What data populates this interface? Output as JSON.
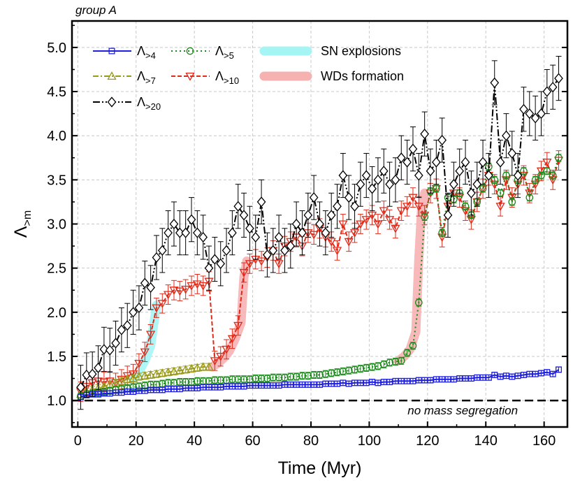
{
  "chart_data": {
    "type": "line",
    "panel_label": "group A",
    "xlabel": "Time (Myr)",
    "ylabel": "Λ",
    "ylabel_sub": ">m",
    "xlim": [
      -2,
      168
    ],
    "ylim": [
      0.7,
      5.3
    ],
    "xticks": [
      0,
      20,
      40,
      60,
      80,
      100,
      120,
      140,
      160
    ],
    "yticks": [
      1.0,
      1.5,
      2.0,
      2.5,
      3.0,
      3.5,
      4.0,
      4.5,
      5.0
    ],
    "ytick_labels": [
      "1.0",
      "1.5",
      "2.0",
      "2.5",
      "3.0",
      "3.5",
      "4.0",
      "4.5",
      "5.0"
    ],
    "grid": true,
    "legend_position": "top-left",
    "reference_line": {
      "y": 1.0,
      "label": "no mass segregation",
      "color": "#000000"
    },
    "highlight_bands": [
      {
        "name": "SN explosions",
        "color": "#a6f5f5",
        "x": [
          19,
          21,
          23,
          25,
          26,
          27
        ],
        "y": [
          1.24,
          1.33,
          1.45,
          1.62,
          1.85,
          2.08
        ]
      },
      {
        "name": "WDs formation",
        "color": "#f6b1b1",
        "segments": [
          {
            "x": [
              46,
              48,
              50,
              52,
              54,
              56,
              57,
              58
            ],
            "y": [
              1.38,
              1.42,
              1.48,
              1.56,
              1.7,
              1.88,
              2.4,
              2.58
            ]
          },
          {
            "x": [
              110,
              112,
              114,
              116,
              117,
              118,
              119
            ],
            "y": [
              1.45,
              1.5,
              1.58,
              1.78,
              2.6,
              3.2,
              3.35
            ]
          }
        ]
      }
    ],
    "series": [
      {
        "name": "Λ",
        "name_sub": ">4",
        "color": "#1f1fe0",
        "dash": "none",
        "marker": "square",
        "x": [
          1,
          3,
          5,
          7,
          9,
          11,
          13,
          15,
          17,
          19,
          21,
          23,
          25,
          27,
          29,
          31,
          33,
          35,
          37,
          39,
          41,
          43,
          45,
          47,
          49,
          51,
          53,
          55,
          57,
          59,
          61,
          63,
          65,
          67,
          69,
          71,
          73,
          75,
          77,
          79,
          81,
          83,
          85,
          87,
          89,
          91,
          93,
          95,
          97,
          99,
          101,
          103,
          105,
          107,
          109,
          111,
          113,
          115,
          117,
          119,
          121,
          123,
          125,
          127,
          129,
          131,
          133,
          135,
          137,
          139,
          141,
          143,
          145,
          147,
          149,
          151,
          153,
          155,
          157,
          159,
          161,
          163,
          165
        ],
        "y": [
          1.04,
          1.06,
          1.07,
          1.07,
          1.08,
          1.08,
          1.09,
          1.09,
          1.1,
          1.1,
          1.11,
          1.11,
          1.12,
          1.12,
          1.12,
          1.13,
          1.13,
          1.13,
          1.14,
          1.14,
          1.14,
          1.15,
          1.15,
          1.15,
          1.15,
          1.16,
          1.16,
          1.16,
          1.16,
          1.17,
          1.17,
          1.17,
          1.17,
          1.17,
          1.17,
          1.18,
          1.18,
          1.18,
          1.18,
          1.18,
          1.18,
          1.18,
          1.19,
          1.19,
          1.19,
          1.2,
          1.19,
          1.2,
          1.2,
          1.2,
          1.21,
          1.2,
          1.21,
          1.21,
          1.22,
          1.22,
          1.22,
          1.22,
          1.23,
          1.23,
          1.23,
          1.24,
          1.24,
          1.24,
          1.24,
          1.25,
          1.25,
          1.25,
          1.26,
          1.26,
          1.26,
          1.29,
          1.27,
          1.28,
          1.27,
          1.28,
          1.29,
          1.3,
          1.3,
          1.31,
          1.32,
          1.3,
          1.35
        ],
        "err": 0.03
      },
      {
        "name": "Λ",
        "name_sub": ">5",
        "color": "#1a8a1a",
        "dash": "2 4",
        "marker": "circle",
        "x": [
          1,
          3,
          5,
          7,
          9,
          11,
          13,
          15,
          17,
          19,
          21,
          23,
          25,
          27,
          29,
          31,
          33,
          35,
          37,
          39,
          41,
          43,
          45,
          47,
          49,
          51,
          53,
          55,
          57,
          59,
          61,
          63,
          65,
          67,
          69,
          71,
          73,
          75,
          77,
          79,
          81,
          83,
          85,
          87,
          89,
          91,
          93,
          95,
          97,
          99,
          101,
          103,
          105,
          107,
          109,
          111,
          113,
          115,
          117,
          119,
          121,
          123,
          125,
          127,
          129,
          131,
          133,
          135,
          137,
          139,
          141,
          143,
          145,
          147,
          149,
          151,
          153,
          155,
          157,
          159,
          161,
          163,
          165
        ],
        "y": [
          1.05,
          1.07,
          1.08,
          1.09,
          1.1,
          1.11,
          1.12,
          1.13,
          1.14,
          1.15,
          1.16,
          1.17,
          1.18,
          1.18,
          1.19,
          1.2,
          1.2,
          1.21,
          1.21,
          1.21,
          1.22,
          1.22,
          1.22,
          1.23,
          1.23,
          1.23,
          1.24,
          1.24,
          1.24,
          1.24,
          1.25,
          1.25,
          1.25,
          1.26,
          1.26,
          1.26,
          1.27,
          1.27,
          1.28,
          1.28,
          1.29,
          1.29,
          1.3,
          1.31,
          1.32,
          1.33,
          1.34,
          1.35,
          1.36,
          1.37,
          1.38,
          1.39,
          1.41,
          1.43,
          1.44,
          1.45,
          1.54,
          1.62,
          2.11,
          3.08,
          3.37,
          3.4,
          2.9,
          3.3,
          3.28,
          3.35,
          3.2,
          3.1,
          3.25,
          3.4,
          3.65,
          3.5,
          3.35,
          3.55,
          3.25,
          3.5,
          3.6,
          3.3,
          3.5,
          3.55,
          3.6,
          3.55,
          3.75
        ],
        "err": 0.04
      },
      {
        "name": "Λ",
        "name_sub": ">7",
        "color": "#9a9a1a",
        "dash": "8 3 2 3",
        "marker": "triangle-up",
        "x": [
          1,
          3,
          5,
          7,
          9,
          11,
          13,
          15,
          17,
          19,
          21,
          23,
          25,
          27,
          29,
          31,
          33,
          35,
          37,
          39,
          41,
          43,
          45
        ],
        "y": [
          1.07,
          1.1,
          1.12,
          1.14,
          1.16,
          1.18,
          1.2,
          1.22,
          1.24,
          1.25,
          1.27,
          1.28,
          1.29,
          1.3,
          1.31,
          1.32,
          1.33,
          1.34,
          1.35,
          1.36,
          1.37,
          1.38,
          1.38
        ],
        "err": 0.04
      },
      {
        "name": "Λ",
        "name_sub": ">10",
        "color": "#e02a1a",
        "dash": "6 3",
        "marker": "triangle-down",
        "x": [
          1,
          3,
          5,
          7,
          9,
          11,
          13,
          15,
          17,
          19,
          21,
          23,
          25,
          27,
          29,
          31,
          33,
          35,
          37,
          39,
          41,
          43,
          45,
          47,
          49,
          51,
          53,
          55,
          57,
          59,
          61,
          63,
          65,
          67,
          69,
          71,
          73,
          75,
          77,
          79,
          81,
          83,
          85,
          87,
          89,
          91,
          93,
          95,
          97,
          99,
          101,
          103,
          105,
          107,
          109,
          111,
          113,
          115,
          117,
          119,
          121,
          123,
          125,
          127,
          129,
          131,
          133,
          135,
          137,
          139,
          141,
          143,
          145,
          147,
          149,
          151,
          153,
          155,
          157,
          159,
          161,
          163,
          165
        ],
        "y": [
          1.1,
          1.16,
          1.2,
          1.22,
          1.21,
          1.22,
          1.2,
          1.24,
          1.28,
          1.3,
          1.42,
          1.55,
          1.75,
          2.05,
          2.1,
          2.2,
          2.25,
          2.24,
          2.26,
          2.3,
          2.32,
          2.3,
          2.35,
          1.45,
          1.5,
          1.58,
          1.7,
          1.85,
          2.45,
          2.55,
          2.6,
          2.58,
          2.62,
          2.7,
          2.55,
          2.75,
          2.8,
          2.85,
          2.75,
          2.9,
          2.88,
          2.95,
          2.85,
          2.8,
          2.7,
          3.0,
          2.8,
          2.9,
          3.0,
          3.05,
          3.1,
          3.0,
          3.15,
          3.05,
          2.95,
          3.15,
          3.2,
          3.3,
          3.2,
          3.1,
          3.35,
          3.4,
          2.85,
          3.2,
          3.35,
          3.3,
          3.15,
          3.05,
          3.25,
          3.4,
          3.55,
          3.45,
          3.2,
          3.5,
          3.3,
          3.45,
          3.55,
          3.35,
          3.45,
          3.6,
          3.7,
          3.5,
          3.72
        ],
        "err": 0.11
      },
      {
        "name": "Λ",
        "name_sub": ">20",
        "color": "#000000",
        "dash": "10 3 2 3 2 3",
        "marker": "diamond",
        "x": [
          1,
          3,
          5,
          7,
          9,
          11,
          13,
          15,
          17,
          19,
          21,
          23,
          25,
          27,
          29,
          31,
          33,
          35,
          37,
          39,
          41,
          43,
          45,
          47,
          49,
          51,
          53,
          55,
          57,
          59,
          61,
          63,
          65,
          67,
          69,
          71,
          73,
          75,
          77,
          79,
          81,
          83,
          85,
          87,
          89,
          91,
          93,
          95,
          97,
          99,
          101,
          103,
          105,
          107,
          109,
          111,
          113,
          115,
          117,
          119,
          121,
          123,
          125,
          127,
          129,
          131,
          133,
          135,
          137,
          139,
          141,
          143,
          145,
          147,
          149,
          151,
          153,
          155,
          157,
          159,
          161,
          163,
          165
        ],
        "y": [
          1.15,
          1.29,
          1.3,
          1.37,
          1.58,
          1.57,
          1.65,
          1.8,
          1.85,
          2.0,
          2.05,
          2.33,
          2.28,
          2.62,
          2.7,
          2.9,
          3.0,
          2.9,
          2.9,
          3.05,
          2.9,
          2.85,
          2.5,
          2.6,
          2.55,
          2.7,
          2.9,
          3.2,
          3.1,
          2.95,
          2.85,
          3.25,
          2.65,
          2.7,
          2.85,
          2.7,
          2.75,
          3.0,
          2.9,
          3.1,
          3.3,
          3.0,
          2.9,
          3.1,
          3.2,
          3.55,
          3.3,
          3.2,
          3.45,
          3.55,
          3.4,
          3.5,
          3.6,
          3.45,
          3.5,
          3.75,
          3.7,
          3.85,
          3.55,
          4.02,
          3.6,
          3.7,
          3.95,
          3.1,
          3.45,
          3.6,
          3.7,
          3.35,
          3.45,
          3.7,
          3.55,
          4.6,
          3.7,
          4.0,
          3.8,
          3.55,
          4.3,
          4.25,
          4.2,
          4.25,
          4.5,
          4.55,
          4.65
        ],
        "err": 0.25
      }
    ]
  }
}
